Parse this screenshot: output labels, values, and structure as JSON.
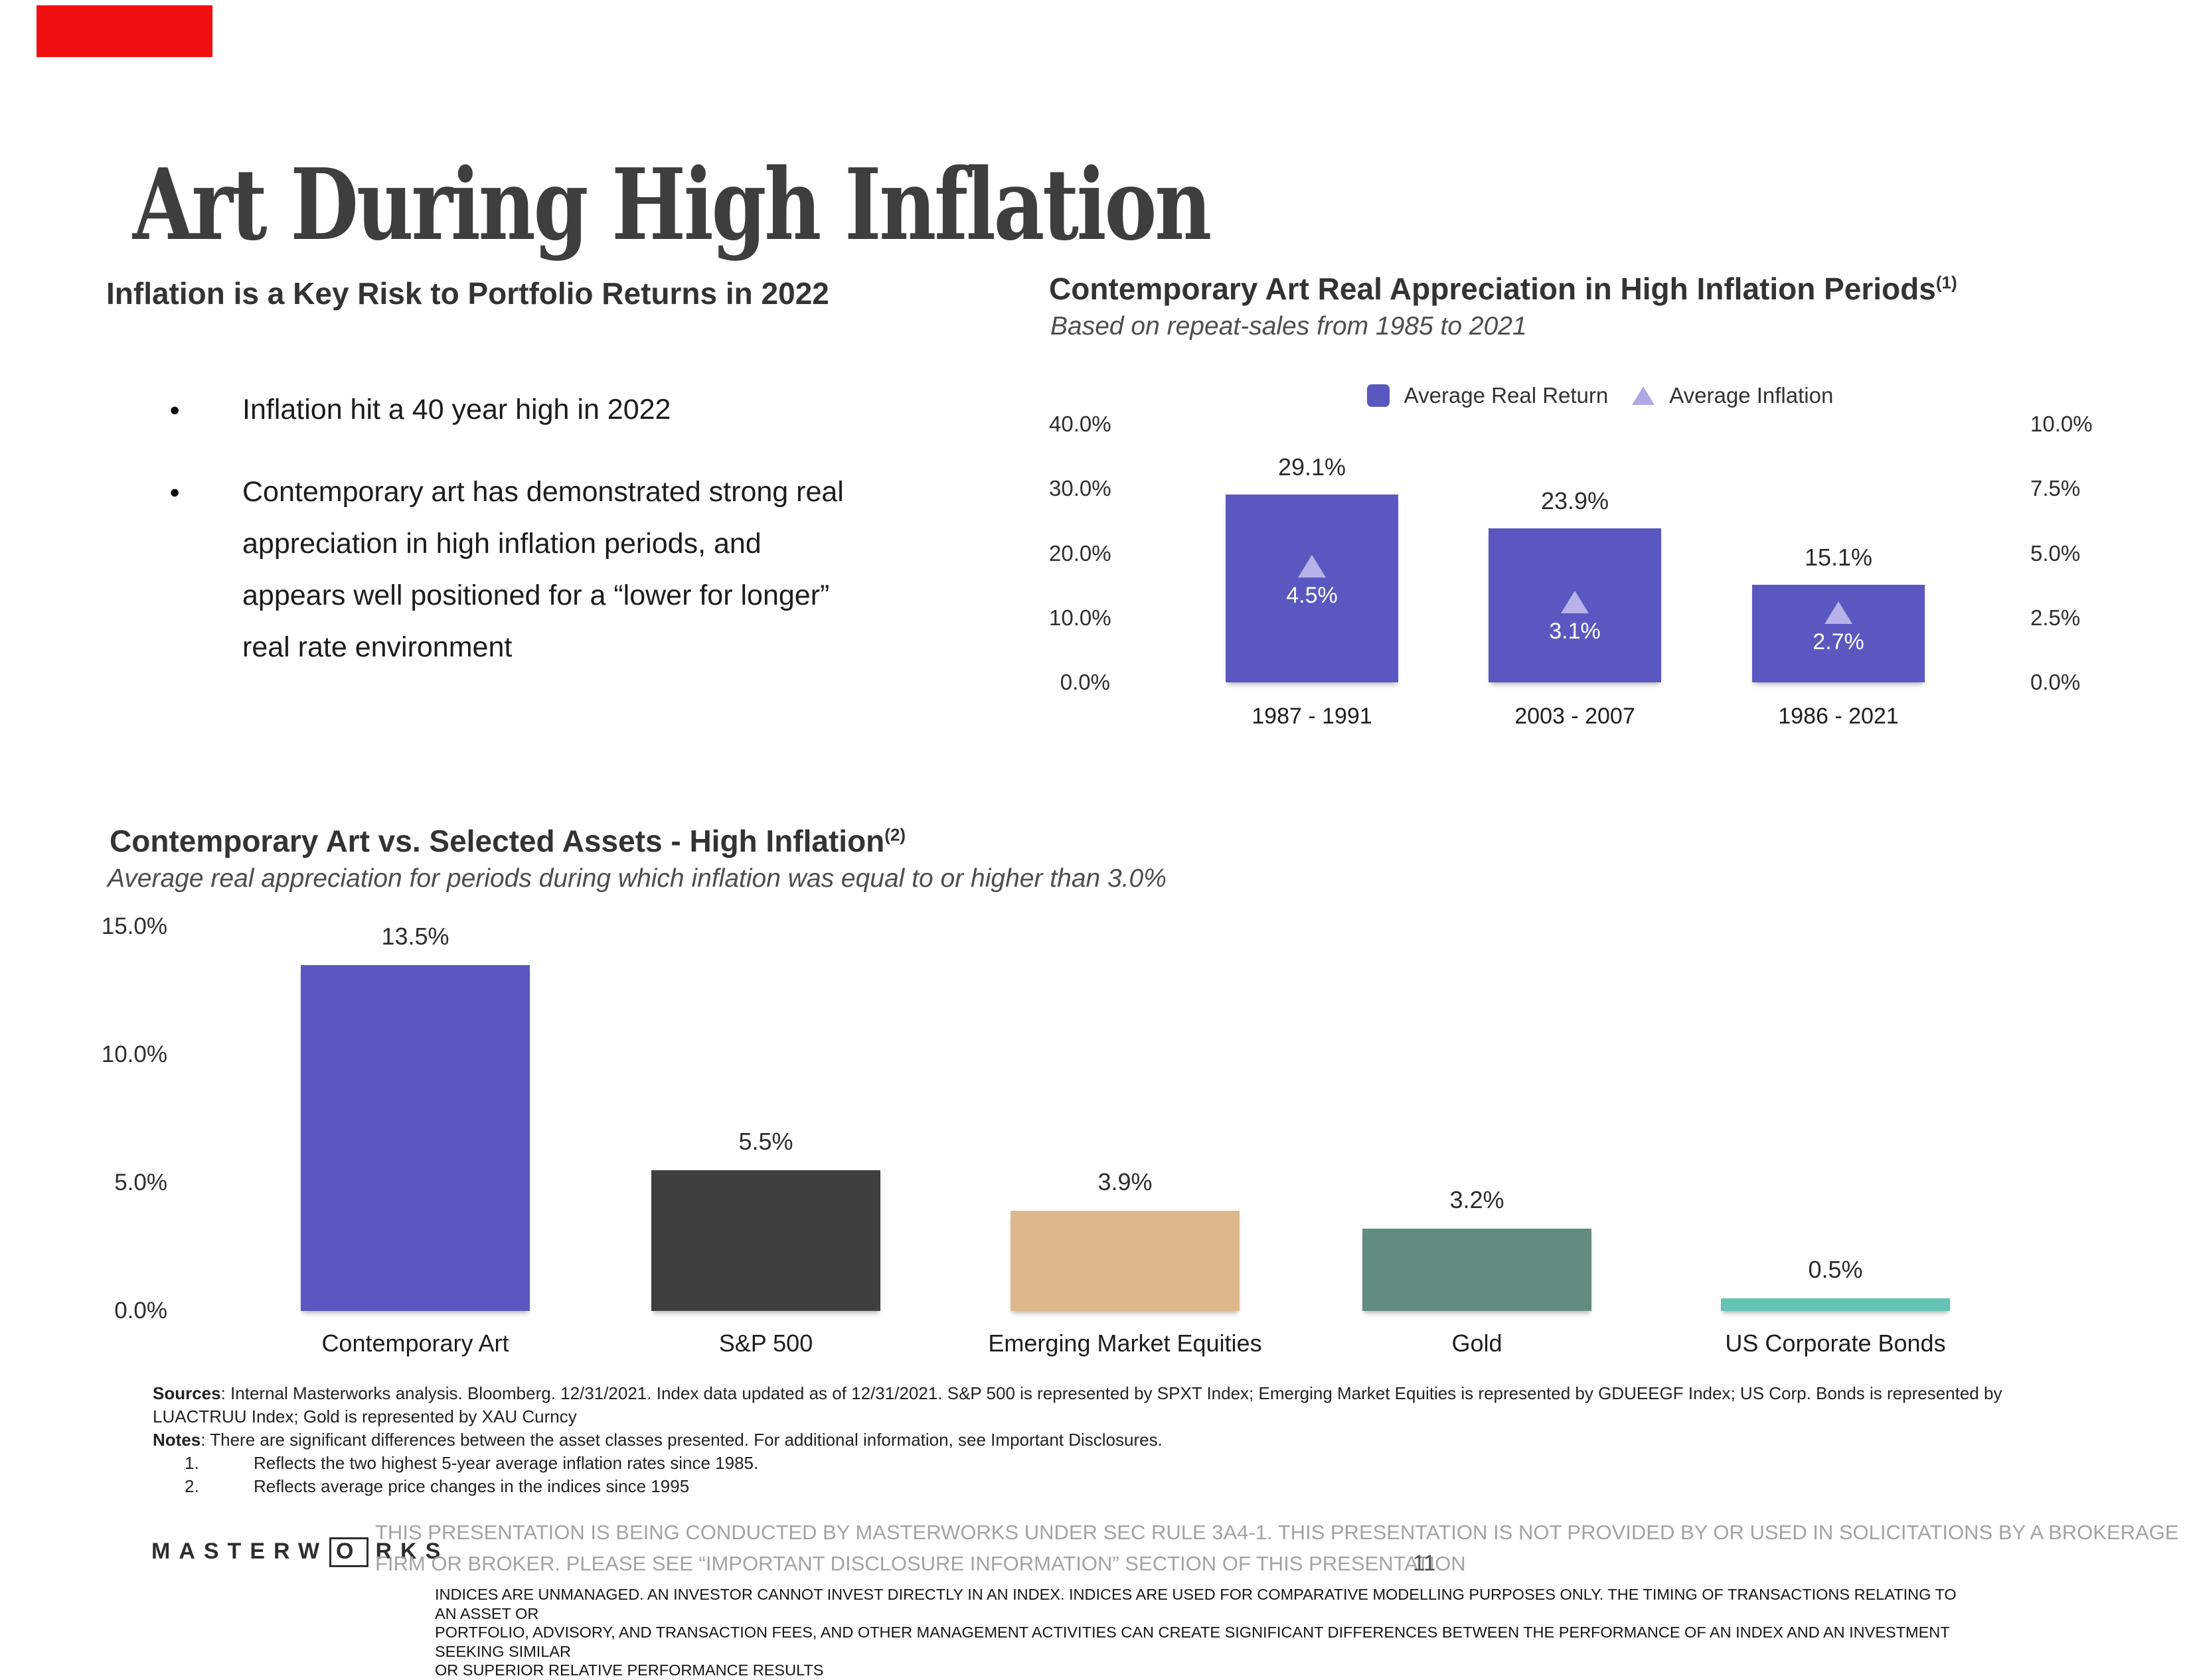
{
  "slide": {
    "title": "Art During High Inflation",
    "page_number": "11"
  },
  "colors": {
    "accent_purple": "#5a58c0",
    "light_purple_triangle": "#b7b3ea",
    "dark_gray_bar": "#3f3f3f",
    "tan_bar": "#ddb88d",
    "sage_bar": "#628c7f",
    "teal_bar": "#63c4b3",
    "red_marker": "#f01010",
    "title_text": "#3e3e3e",
    "footer_gray": "#a3a3a3"
  },
  "left_section": {
    "heading": "Inflation is a Key Risk to Portfolio Returns in 2022",
    "bullets": [
      {
        "lines": [
          "Inflation hit a 40 year high in 2022"
        ]
      },
      {
        "lines": [
          "Contemporary art has demonstrated strong real",
          "appreciation in high inflation periods, and",
          "appears well positioned for a “lower for longer”",
          "real rate environment"
        ]
      }
    ]
  },
  "chart_data": [
    {
      "type": "bar",
      "title": "Contemporary Art Real Appreciation in High Inflation Periods",
      "title_superscript": "(1)",
      "subtitle": "Based on repeat-sales from 1985 to 2021",
      "legend_position": "top",
      "grid": false,
      "legend": [
        {
          "label": "Average Real Return",
          "marker": "square",
          "color": "#5a58c0"
        },
        {
          "label": "Average Inflation",
          "marker": "triangle",
          "color": "#aeaae6"
        }
      ],
      "categories": [
        "1987 - 1991",
        "2003 - 2007",
        "1986 - 2021"
      ],
      "series": [
        {
          "name": "Average Real Return",
          "axis": "left",
          "values": [
            29.1,
            23.9,
            15.1
          ],
          "labels": [
            "29.1%",
            "23.9%",
            "15.1%"
          ]
        },
        {
          "name": "Average Inflation",
          "axis": "right",
          "values": [
            4.5,
            3.1,
            2.7
          ],
          "labels": [
            "4.5%",
            "3.1%",
            "2.7%"
          ]
        }
      ],
      "left_axis": {
        "min": 0,
        "max": 40,
        "ticks": [
          40,
          30,
          20,
          10,
          0
        ],
        "tick_labels": [
          "40.0%",
          "30.0%",
          "20.0%",
          "10.0%",
          "0.0%"
        ]
      },
      "right_axis": {
        "min": 0,
        "max": 10,
        "ticks": [
          10,
          7.5,
          5,
          2.5,
          0
        ],
        "tick_labels": [
          "10.0%",
          "7.5%",
          "5.0%",
          "2.5%",
          "0.0%"
        ]
      }
    },
    {
      "type": "bar",
      "title": "Contemporary Art vs. Selected Assets - High Inflation",
      "title_superscript": "(2)",
      "subtitle": "Average real appreciation for periods during which inflation was equal to or higher than 3.0%",
      "grid": false,
      "categories": [
        "Contemporary Art",
        "S&P 500",
        "Emerging Market Equities",
        "Gold",
        "US Corporate Bonds"
      ],
      "values": [
        13.5,
        5.5,
        3.9,
        3.2,
        0.5
      ],
      "value_labels": [
        "13.5%",
        "5.5%",
        "3.9%",
        "3.2%",
        "0.5%"
      ],
      "bar_colors": [
        "#5a58c0",
        "#3f3f3f",
        "#ddb88d",
        "#628c7f",
        "#63c4b3"
      ],
      "y_axis": {
        "min": 0,
        "max": 15,
        "ticks": [
          15,
          10,
          5,
          0
        ],
        "tick_labels": [
          "15.0%",
          "10.0%",
          "5.0%",
          "0.0%"
        ]
      }
    }
  ],
  "footnotes": {
    "sources_label": "Sources",
    "sources_line1": ": Internal Masterworks analysis. Bloomberg. 12/31/2021. Index data updated as of 12/31/2021. S&P 500 is represented by SPXT Index; Emerging Market Equities is represented by GDUEEGF Index; US Corp. Bonds is represented by",
    "sources_line2": "LUACTRUU Index; Gold is represented by XAU Curncy",
    "notes_label": "Notes",
    "notes_text": ": There are significant differences between the asset classes presented. For additional information, see Important Disclosures.",
    "items": [
      {
        "num": "1.",
        "text": "Reflects the two highest 5-year average inflation rates since 1985."
      },
      {
        "num": "2.",
        "text": "Reflects average price changes in the indices since 1995"
      }
    ]
  },
  "footer": {
    "logo_prefix": "MASTERW",
    "logo_o": "O",
    "logo_suffix": "RKS",
    "disclaimer_line1": "THIS PRESENTATION  IS BEING CONDUCTED BY MASTERWORKS UNDER SEC RULE 3A4-1. THIS PRESENTATION  IS NOT PROVIDED BY OR USED IN SOLICITATIONS BY A BROKERAGE",
    "disclaimer_line2": "FIRM OR BROKER. PLEASE SEE “IMPORTANT DISCLOSURE INFORMATION” SECTION OF THIS PRESENTATION",
    "indices_line1": "INDICES ARE UNMANAGED. AN INVESTOR CANNOT INVEST DIRECTLY IN AN INDEX. INDICES ARE USED FOR COMPARATIVE MODELLING PURPOSES ONLY. THE TIMING OF TRANSACTIONS RELATING TO AN ASSET OR",
    "indices_line2": "PORTFOLIO, ADVISORY, AND TRANSACTION FEES, AND OTHER MANAGEMENT ACTIVITIES CAN CREATE SIGNIFICANT DIFFERENCES BETWEEN THE PERFORMANCE OF AN INDEX AND AN INVESTMENT SEEKING SIMILAR",
    "indices_line3": "OR SUPERIOR RELATIVE PERFORMANCE RESULTS"
  }
}
